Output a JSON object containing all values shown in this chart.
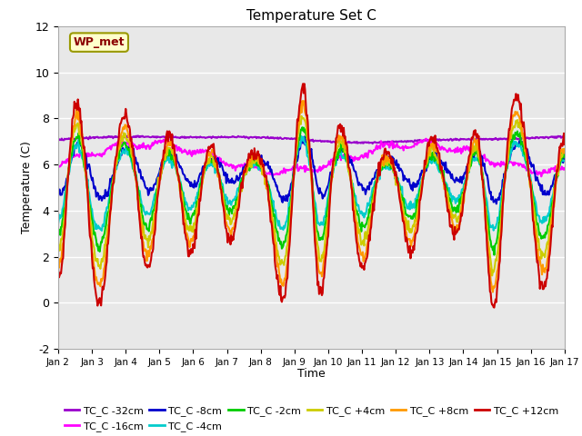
{
  "title": "Temperature Set C",
  "xlabel": "Time",
  "ylabel": "Temperature (C)",
  "ylim": [
    -2,
    12
  ],
  "xlim": [
    0,
    15
  ],
  "xtick_labels": [
    "Jan 2",
    "Jan 3",
    "Jan 4",
    "Jan 5",
    "Jan 6",
    "Jan 7",
    "Jan 8",
    "Jan 9",
    "Jan 10",
    "Jan 11",
    "Jan 12",
    "Jan 13",
    "Jan 14",
    "Jan 15",
    "Jan 16",
    "Jan 17"
  ],
  "annotation": "WP_met",
  "series_labels": [
    "TC_C -32cm",
    "TC_C -16cm",
    "TC_C -8cm",
    "TC_C -4cm",
    "TC_C -2cm",
    "TC_C +4cm",
    "TC_C +8cm",
    "TC_C +12cm"
  ],
  "series_colors": [
    "#9900cc",
    "#ff00ff",
    "#0000cc",
    "#00cccc",
    "#00cc00",
    "#cccc00",
    "#ff9900",
    "#cc0000"
  ],
  "line_widths": [
    1.5,
    1.5,
    1.5,
    1.5,
    1.5,
    1.5,
    1.5,
    1.5
  ],
  "bg_color": "#e8e8e8",
  "fig_bg": "#ffffff",
  "grid_color": "#ffffff",
  "n_points": 721
}
